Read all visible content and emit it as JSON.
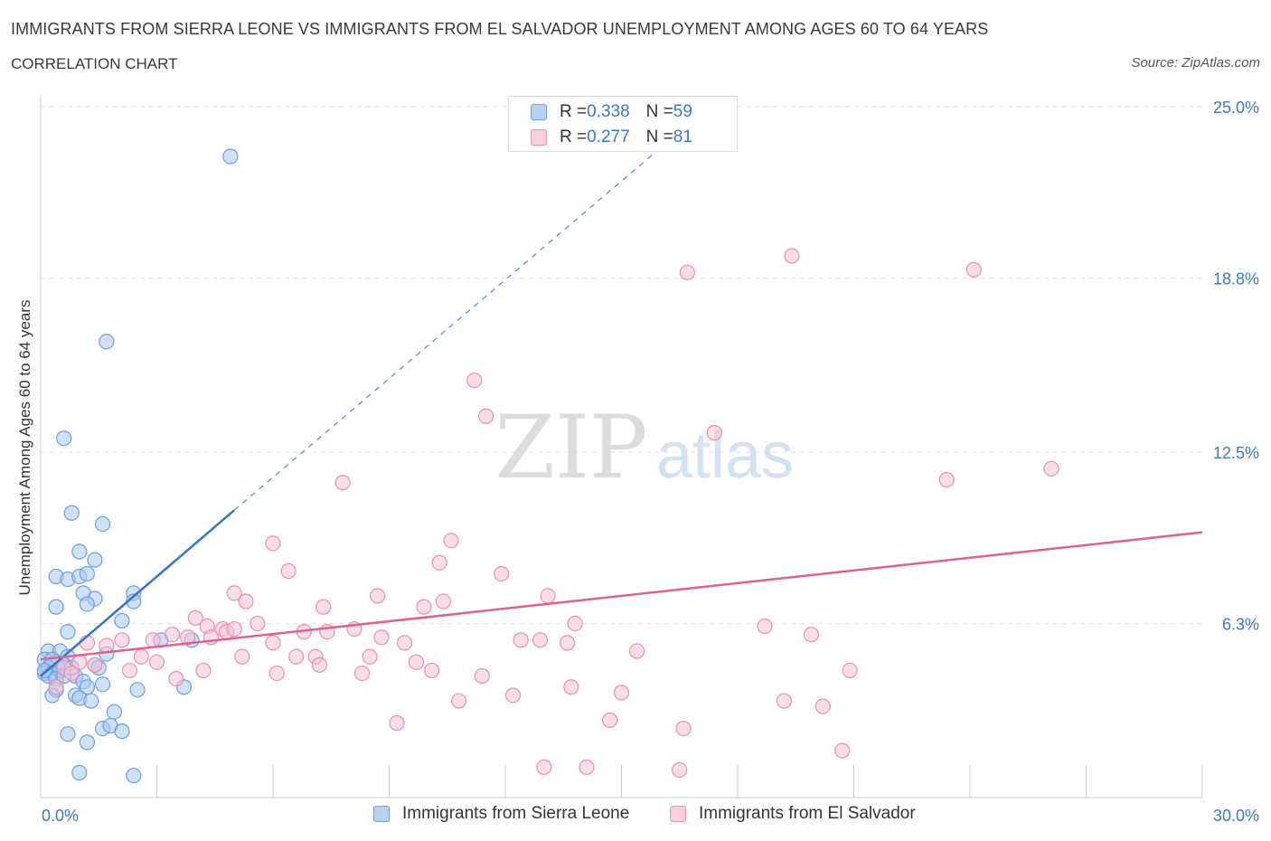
{
  "title": "IMMIGRANTS FROM SIERRA LEONE VS IMMIGRANTS FROM EL SALVADOR UNEMPLOYMENT AMONG AGES 60 TO 64 YEARS",
  "subtitle": "CORRELATION CHART",
  "source": "Source: ZipAtlas.com",
  "watermark": {
    "zip": "ZIP",
    "atlas": "atlas"
  },
  "legend": {
    "rows": [
      {
        "r_label": "R = ",
        "r_value": "0.338",
        "n_label": "N = ",
        "n_value": "59"
      },
      {
        "r_label": "R = ",
        "r_value": "0.277",
        "n_label": "N = ",
        "n_value": "81"
      }
    ]
  },
  "chart_data": {
    "type": "scatter",
    "title": "IMMIGRANTS FROM SIERRA LEONE VS IMMIGRANTS FROM EL SALVADOR UNEMPLOYMENT AMONG AGES 60 TO 64 YEARS",
    "xlabel": "",
    "ylabel": "Unemployment Among Ages 60 to 64 years",
    "xlim": [
      0,
      30
    ],
    "ylim": [
      0,
      25
    ],
    "x_tick_labels": [
      "0.0%",
      "30.0%"
    ],
    "y_ticks": [
      6.3,
      12.5,
      18.8,
      25.0
    ],
    "y_tick_labels": [
      "6.3%",
      "12.5%",
      "18.8%",
      "25.0%"
    ],
    "grid": true,
    "series": [
      {
        "name": "Immigrants from Sierra Leone",
        "color": "#6aa0e0",
        "fill": "#a9c8f0",
        "line_color": "#2e74d0",
        "trend": {
          "x0": 0.0,
          "y0": 4.4,
          "x1": 5.0,
          "y1": 10.4,
          "dash_x1": 16.0,
          "dash_y1": 23.5
        },
        "points": [
          [
            4.9,
            23.2
          ],
          [
            1.7,
            16.5
          ],
          [
            0.6,
            13.0
          ],
          [
            0.8,
            10.3
          ],
          [
            1.6,
            9.9
          ],
          [
            1.0,
            8.9
          ],
          [
            1.4,
            8.6
          ],
          [
            0.4,
            8.0
          ],
          [
            0.7,
            7.9
          ],
          [
            1.0,
            8.0
          ],
          [
            1.2,
            8.1
          ],
          [
            1.1,
            7.4
          ],
          [
            1.4,
            7.2
          ],
          [
            2.4,
            7.4
          ],
          [
            2.4,
            7.1
          ],
          [
            1.2,
            7.0
          ],
          [
            0.4,
            6.9
          ],
          [
            2.1,
            6.4
          ],
          [
            0.7,
            6.0
          ],
          [
            3.1,
            5.7
          ],
          [
            3.9,
            5.7
          ],
          [
            0.2,
            5.3
          ],
          [
            0.5,
            5.3
          ],
          [
            1.7,
            5.2
          ],
          [
            0.1,
            5.0
          ],
          [
            0.4,
            4.9
          ],
          [
            0.7,
            5.1
          ],
          [
            1.4,
            4.8
          ],
          [
            0.2,
            4.7
          ],
          [
            0.3,
            4.5
          ],
          [
            0.5,
            4.6
          ],
          [
            0.6,
            4.8
          ],
          [
            0.1,
            4.5
          ],
          [
            0.2,
            4.4
          ],
          [
            0.4,
            4.3
          ],
          [
            0.9,
            4.4
          ],
          [
            1.1,
            4.2
          ],
          [
            1.6,
            4.1
          ],
          [
            1.2,
            4.0
          ],
          [
            0.4,
            3.9
          ],
          [
            2.5,
            3.9
          ],
          [
            3.7,
            4.0
          ],
          [
            0.9,
            3.7
          ],
          [
            1.0,
            3.6
          ],
          [
            1.3,
            3.5
          ],
          [
            1.9,
            3.1
          ],
          [
            1.6,
            2.5
          ],
          [
            1.8,
            2.6
          ],
          [
            2.1,
            2.4
          ],
          [
            0.7,
            2.3
          ],
          [
            1.2,
            2.0
          ],
          [
            1.0,
            0.9
          ],
          [
            2.4,
            0.8
          ],
          [
            0.3,
            3.7
          ],
          [
            0.1,
            4.6
          ],
          [
            0.3,
            5.0
          ],
          [
            0.6,
            4.4
          ],
          [
            0.8,
            4.7
          ],
          [
            1.5,
            4.7
          ]
        ]
      },
      {
        "name": "Immigrants from El Salvador",
        "color": "#eb8fab",
        "fill": "#f6c3d3",
        "line_color": "#e0628c",
        "trend": {
          "x0": 0.0,
          "y0": 5.0,
          "x1": 30.0,
          "y1": 9.6
        },
        "points": [
          [
            19.4,
            19.6
          ],
          [
            16.7,
            19.0
          ],
          [
            24.1,
            19.1
          ],
          [
            11.2,
            15.1
          ],
          [
            11.5,
            13.8
          ],
          [
            17.4,
            13.2
          ],
          [
            7.8,
            11.4
          ],
          [
            23.4,
            11.5
          ],
          [
            26.1,
            11.9
          ],
          [
            6.0,
            9.2
          ],
          [
            10.6,
            9.3
          ],
          [
            6.4,
            8.2
          ],
          [
            10.3,
            8.5
          ],
          [
            11.9,
            8.1
          ],
          [
            5.0,
            7.4
          ],
          [
            8.7,
            7.3
          ],
          [
            13.1,
            7.3
          ],
          [
            5.3,
            7.1
          ],
          [
            10.4,
            7.1
          ],
          [
            7.3,
            6.9
          ],
          [
            9.9,
            6.9
          ],
          [
            5.6,
            6.3
          ],
          [
            4.7,
            6.1
          ],
          [
            13.8,
            6.3
          ],
          [
            18.7,
            6.2
          ],
          [
            6.8,
            6.0
          ],
          [
            4.8,
            6.0
          ],
          [
            7.4,
            6.0
          ],
          [
            8.1,
            6.1
          ],
          [
            4.3,
            6.2
          ],
          [
            3.8,
            5.8
          ],
          [
            4.4,
            5.8
          ],
          [
            5.0,
            6.1
          ],
          [
            4.0,
            6.5
          ],
          [
            2.9,
            5.7
          ],
          [
            3.4,
            5.9
          ],
          [
            8.8,
            5.8
          ],
          [
            9.4,
            5.6
          ],
          [
            12.4,
            5.7
          ],
          [
            12.9,
            5.7
          ],
          [
            13.6,
            5.6
          ],
          [
            19.9,
            5.9
          ],
          [
            6.0,
            5.6
          ],
          [
            1.2,
            5.6
          ],
          [
            2.1,
            5.7
          ],
          [
            1.7,
            5.5
          ],
          [
            2.6,
            5.1
          ],
          [
            3.0,
            4.9
          ],
          [
            5.2,
            5.1
          ],
          [
            6.6,
            5.1
          ],
          [
            7.1,
            5.1
          ],
          [
            8.5,
            5.1
          ],
          [
            9.7,
            4.9
          ],
          [
            7.2,
            4.8
          ],
          [
            15.4,
            5.3
          ],
          [
            4.2,
            4.6
          ],
          [
            1.4,
            4.8
          ],
          [
            2.3,
            4.6
          ],
          [
            6.1,
            4.5
          ],
          [
            8.3,
            4.5
          ],
          [
            10.1,
            4.6
          ],
          [
            11.4,
            4.4
          ],
          [
            20.9,
            4.6
          ],
          [
            3.5,
            4.3
          ],
          [
            0.4,
            4.0
          ],
          [
            0.6,
            4.7
          ],
          [
            1.0,
            4.9
          ],
          [
            12.2,
            3.7
          ],
          [
            13.7,
            4.0
          ],
          [
            15.0,
            3.8
          ],
          [
            10.8,
            3.5
          ],
          [
            19.2,
            3.5
          ],
          [
            20.2,
            3.3
          ],
          [
            9.2,
            2.7
          ],
          [
            14.7,
            2.8
          ],
          [
            16.6,
            2.5
          ],
          [
            20.7,
            1.7
          ],
          [
            13.0,
            1.1
          ],
          [
            14.1,
            1.1
          ],
          [
            16.5,
            1.0
          ],
          [
            0.8,
            4.5
          ]
        ]
      }
    ]
  },
  "bottom_legend": [
    {
      "label": "Immigrants from Sierra Leone"
    },
    {
      "label": "Immigrants from El Salvador"
    }
  ]
}
